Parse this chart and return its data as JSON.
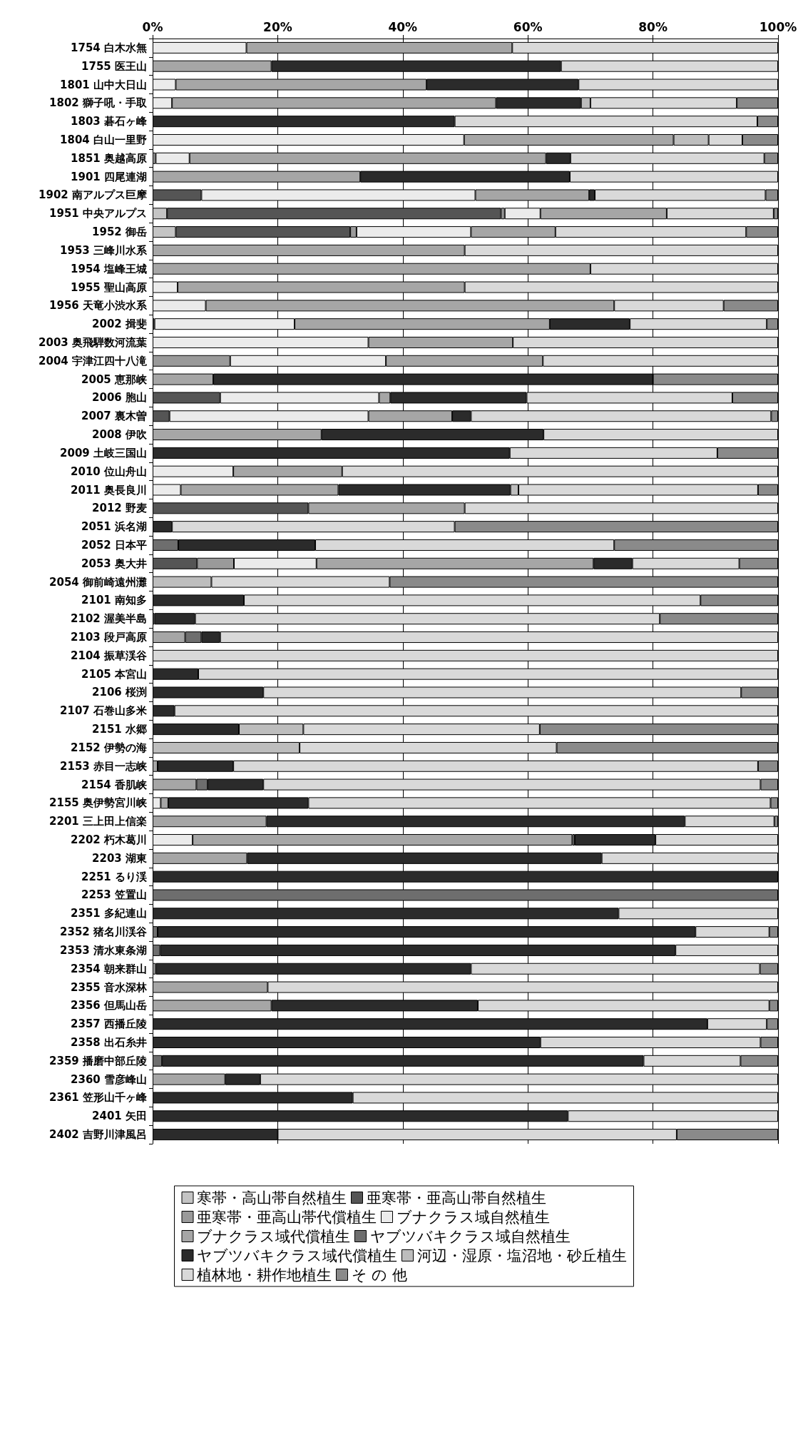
{
  "chart_data": {
    "type": "bar",
    "orientation": "horizontal",
    "stacked": true,
    "categories": [
      "1754 白木水無",
      "1755 医王山",
      "1801 山中大日山",
      "1802 獅子吼・手取",
      "1803 碁石ヶ峰",
      "1804 白山一里野",
      "1851 奥越高原",
      "1901 四尾連湖",
      "1902 南アルプス巨摩",
      "1951 中央アルプス",
      "1952 御岳",
      "1953 三峰川水系",
      "1954 塩峰王城",
      "1955 聖山高原",
      "1956 天竜小渋水系",
      "2002 揖斐",
      "2003 奥飛騨数河流葉",
      "2004 宇津江四十八滝",
      "2005 恵那峡",
      "2006 胞山",
      "2007 裏木曽",
      "2008 伊吹",
      "2009 土岐三国山",
      "2010 位山舟山",
      "2011 奥長良川",
      "2012 野麦",
      "2051 浜名湖",
      "2052 日本平",
      "2053 奥大井",
      "2054 御前崎遠州灘",
      "2101 南知多",
      "2102 渥美半島",
      "2103 段戸高原",
      "2104 振草渓谷",
      "2105 本宮山",
      "2106 桜渕",
      "2107 石巻山多米",
      "2151 水郷",
      "2152 伊勢の海",
      "2153 赤目一志峡",
      "2154 香肌峡",
      "2155 奥伊勢宮川峡",
      "2201 三上田上信楽",
      "2202 朽木葛川",
      "2203 湖東",
      "2251 るり渓",
      "2253 笠置山",
      "2351 多紀連山",
      "2352 猪名川渓谷",
      "2353 清水東条湖",
      "2354 朝来群山",
      "2355 音水深林",
      "2356 但馬山岳",
      "2357 西播丘陵",
      "2358 出石糸井",
      "2359 播磨中部丘陵",
      "2360 雪彦峰山",
      "2361 笠形山千ヶ峰",
      "2401 矢田",
      "2402 吉野川津風呂"
    ],
    "xlim": [
      0,
      100
    ],
    "xticks": [
      {
        "value": 0,
        "label": "0%"
      },
      {
        "value": 20,
        "label": "20%"
      },
      {
        "value": 40,
        "label": "40%"
      },
      {
        "value": 60,
        "label": "60%"
      },
      {
        "value": 80,
        "label": "80%"
      },
      {
        "value": 100,
        "label": "100%"
      }
    ],
    "grid": "x",
    "legend": "bottom",
    "series": [
      {
        "name": "寒帯・高山帯自然植生",
        "color": "#c4c4c4",
        "values": [
          null,
          null,
          null,
          null,
          null,
          null,
          null,
          null,
          null,
          2.3,
          3.7,
          null,
          null,
          null,
          null,
          null,
          null,
          null,
          null,
          null,
          null,
          null,
          null,
          null,
          null,
          null,
          null,
          null,
          null,
          null,
          null,
          null,
          null,
          null,
          null,
          null,
          null,
          null,
          null,
          null,
          null,
          null,
          null,
          null,
          null,
          null,
          null,
          null,
          null,
          null,
          null,
          null,
          null,
          null,
          null,
          null,
          null,
          null,
          null,
          null
        ]
      },
      {
        "name": "亜寒帯・亜高山帯自然植生",
        "color": "#555555",
        "values": [
          null,
          null,
          null,
          null,
          null,
          null,
          null,
          null,
          7.8,
          53.4,
          27.9,
          null,
          null,
          null,
          null,
          0.3,
          null,
          null,
          null,
          10.8,
          2.7,
          null,
          null,
          null,
          null,
          24.9,
          null,
          null,
          7.1,
          null,
          null,
          null,
          null,
          null,
          null,
          null,
          null,
          null,
          null,
          null,
          null,
          null,
          null,
          null,
          null,
          null,
          null,
          null,
          null,
          null,
          null,
          null,
          null,
          null,
          null,
          null,
          null,
          null,
          null,
          null
        ]
      },
      {
        "name": "亜寒帯・亜高山帯代償植生",
        "color": "#9a9a9a",
        "values": [
          null,
          null,
          null,
          null,
          null,
          null,
          0.5,
          null,
          null,
          0.6,
          1.0,
          null,
          null,
          null,
          null,
          null,
          null,
          12.4,
          null,
          null,
          null,
          null,
          null,
          null,
          null,
          null,
          null,
          null,
          5.9,
          null,
          null,
          null,
          null,
          null,
          null,
          null,
          null,
          null,
          null,
          null,
          null,
          null,
          null,
          null,
          null,
          null,
          null,
          null,
          null,
          null,
          null,
          null,
          null,
          null,
          null,
          null,
          null,
          null,
          null,
          null
        ]
      },
      {
        "name": "ブナクラス域自然植生",
        "color": "#ebebeb",
        "values": [
          15,
          null,
          3.7,
          3.1,
          null,
          49.8,
          5.4,
          null,
          43.8,
          5.7,
          18.3,
          null,
          null,
          4.0,
          8.5,
          22.4,
          34.5,
          24.9,
          null,
          25.4,
          31.8,
          null,
          null,
          12.9,
          4.5,
          null,
          null,
          null,
          13.2,
          null,
          null,
          null,
          null,
          null,
          null,
          null,
          null,
          null,
          null,
          null,
          null,
          1.3,
          null,
          6.4,
          null,
          null,
          null,
          null,
          null,
          null,
          null,
          null,
          null,
          null,
          null,
          null,
          null,
          null,
          null,
          null
        ]
      },
      {
        "name": "ブナクラス域代償植生",
        "color": "#a6a6a6",
        "values": [
          42.5,
          19,
          40.1,
          51.8,
          null,
          33.5,
          57.0,
          33.2,
          18.2,
          20.2,
          13.5,
          49.9,
          70.0,
          45.9,
          65.3,
          40.8,
          23.1,
          25.1,
          9.7,
          1.8,
          13.4,
          27.0,
          null,
          17.4,
          25.2,
          25.0,
          null,
          null,
          44.3,
          null,
          null,
          null,
          5.2,
          null,
          null,
          null,
          null,
          null,
          null,
          0.8,
          7.0,
          1.2,
          18.2,
          60.7,
          15.1,
          null,
          null,
          null,
          null,
          null,
          0.5,
          18.4,
          19.0,
          null,
          null,
          null,
          11.6,
          null,
          null,
          null
        ]
      },
      {
        "name": "ヤブツバキクラス域自然植生",
        "color": "#6e6e6e",
        "values": [
          null,
          null,
          null,
          null,
          null,
          null,
          null,
          null,
          null,
          null,
          null,
          null,
          null,
          null,
          null,
          null,
          null,
          null,
          null,
          null,
          null,
          null,
          null,
          null,
          null,
          null,
          null,
          4.1,
          null,
          null,
          null,
          0.3,
          2.6,
          null,
          null,
          null,
          null,
          null,
          null,
          null,
          1.8,
          null,
          null,
          0.4,
          null,
          null,
          100,
          null,
          0.8,
          1.2,
          null,
          null,
          null,
          null,
          null,
          1.5,
          null,
          null,
          null,
          null
        ]
      },
      {
        "name": "ヤブツバキクラス域代償植生",
        "color": "#2b2b2b",
        "values": [
          null,
          46.3,
          24.3,
          13.6,
          48.3,
          null,
          3.9,
          33.5,
          0.9,
          null,
          null,
          null,
          null,
          null,
          null,
          12.8,
          null,
          null,
          70.3,
          21.8,
          3.0,
          35.5,
          57.1,
          null,
          27.5,
          null,
          3.1,
          21.9,
          6.2,
          null,
          14.6,
          6.5,
          3.0,
          null,
          7.3,
          17.7,
          3.5,
          13.8,
          null,
          12.1,
          8.9,
          22.4,
          66.9,
          12.9,
          56.7,
          100,
          null,
          74.5,
          86.0,
          82.4,
          50.4,
          null,
          33.0,
          88.7,
          62.0,
          77.0,
          5.6,
          32.0,
          66.4,
          20.0
        ]
      },
      {
        "name": "河辺・湿原・塩沼地・砂丘植生",
        "color": "#bdbdbd",
        "values": [
          null,
          null,
          null,
          1.5,
          null,
          5.6,
          null,
          null,
          null,
          null,
          null,
          null,
          null,
          null,
          null,
          null,
          null,
          null,
          null,
          null,
          null,
          null,
          null,
          null,
          1.3,
          null,
          null,
          null,
          null,
          9.4,
          null,
          null,
          null,
          null,
          null,
          null,
          null,
          10.3,
          23.5,
          null,
          null,
          null,
          null,
          null,
          null,
          null,
          null,
          null,
          null,
          null,
          null,
          null,
          null,
          null,
          null,
          null,
          null,
          null,
          null,
          null
        ]
      },
      {
        "name": "植林地・耕作地植生",
        "color": "#d9d9d9",
        "values": [
          42.5,
          34.7,
          31.9,
          23.4,
          48.4,
          5.4,
          31.0,
          33.3,
          27.3,
          17.1,
          30.5,
          50.1,
          30.0,
          50.1,
          17.5,
          21.9,
          42.4,
          37.6,
          null,
          32.9,
          48.0,
          37.5,
          33.2,
          69.7,
          38.3,
          50.1,
          45.2,
          47.8,
          17.1,
          28.5,
          73.0,
          74.3,
          89.2,
          100,
          92.7,
          76.4,
          96.5,
          37.8,
          41.1,
          83.9,
          79.5,
          73.9,
          14.3,
          19.6,
          28.2,
          null,
          null,
          25.5,
          11.8,
          16.4,
          46.2,
          81.6,
          46.6,
          9.5,
          35.2,
          15.5,
          82.8,
          68.0,
          33.6,
          63.8
        ]
      },
      {
        "name": "そ の 他",
        "color": "#8a8a8a",
        "values": [
          null,
          null,
          null,
          6.6,
          3.3,
          5.7,
          2.2,
          null,
          2.0,
          0.7,
          5.1,
          null,
          null,
          null,
          8.7,
          1.8,
          null,
          null,
          20.0,
          7.3,
          1.1,
          null,
          9.7,
          null,
          3.2,
          null,
          51.7,
          26.2,
          6.2,
          62.1,
          12.4,
          18.9,
          null,
          null,
          null,
          5.9,
          null,
          38.1,
          35.4,
          3.2,
          2.8,
          1.2,
          0.6,
          null,
          null,
          null,
          null,
          null,
          1.4,
          null,
          2.9,
          null,
          1.4,
          1.8,
          2.8,
          6.0,
          null,
          null,
          null,
          16.2
        ]
      }
    ]
  }
}
